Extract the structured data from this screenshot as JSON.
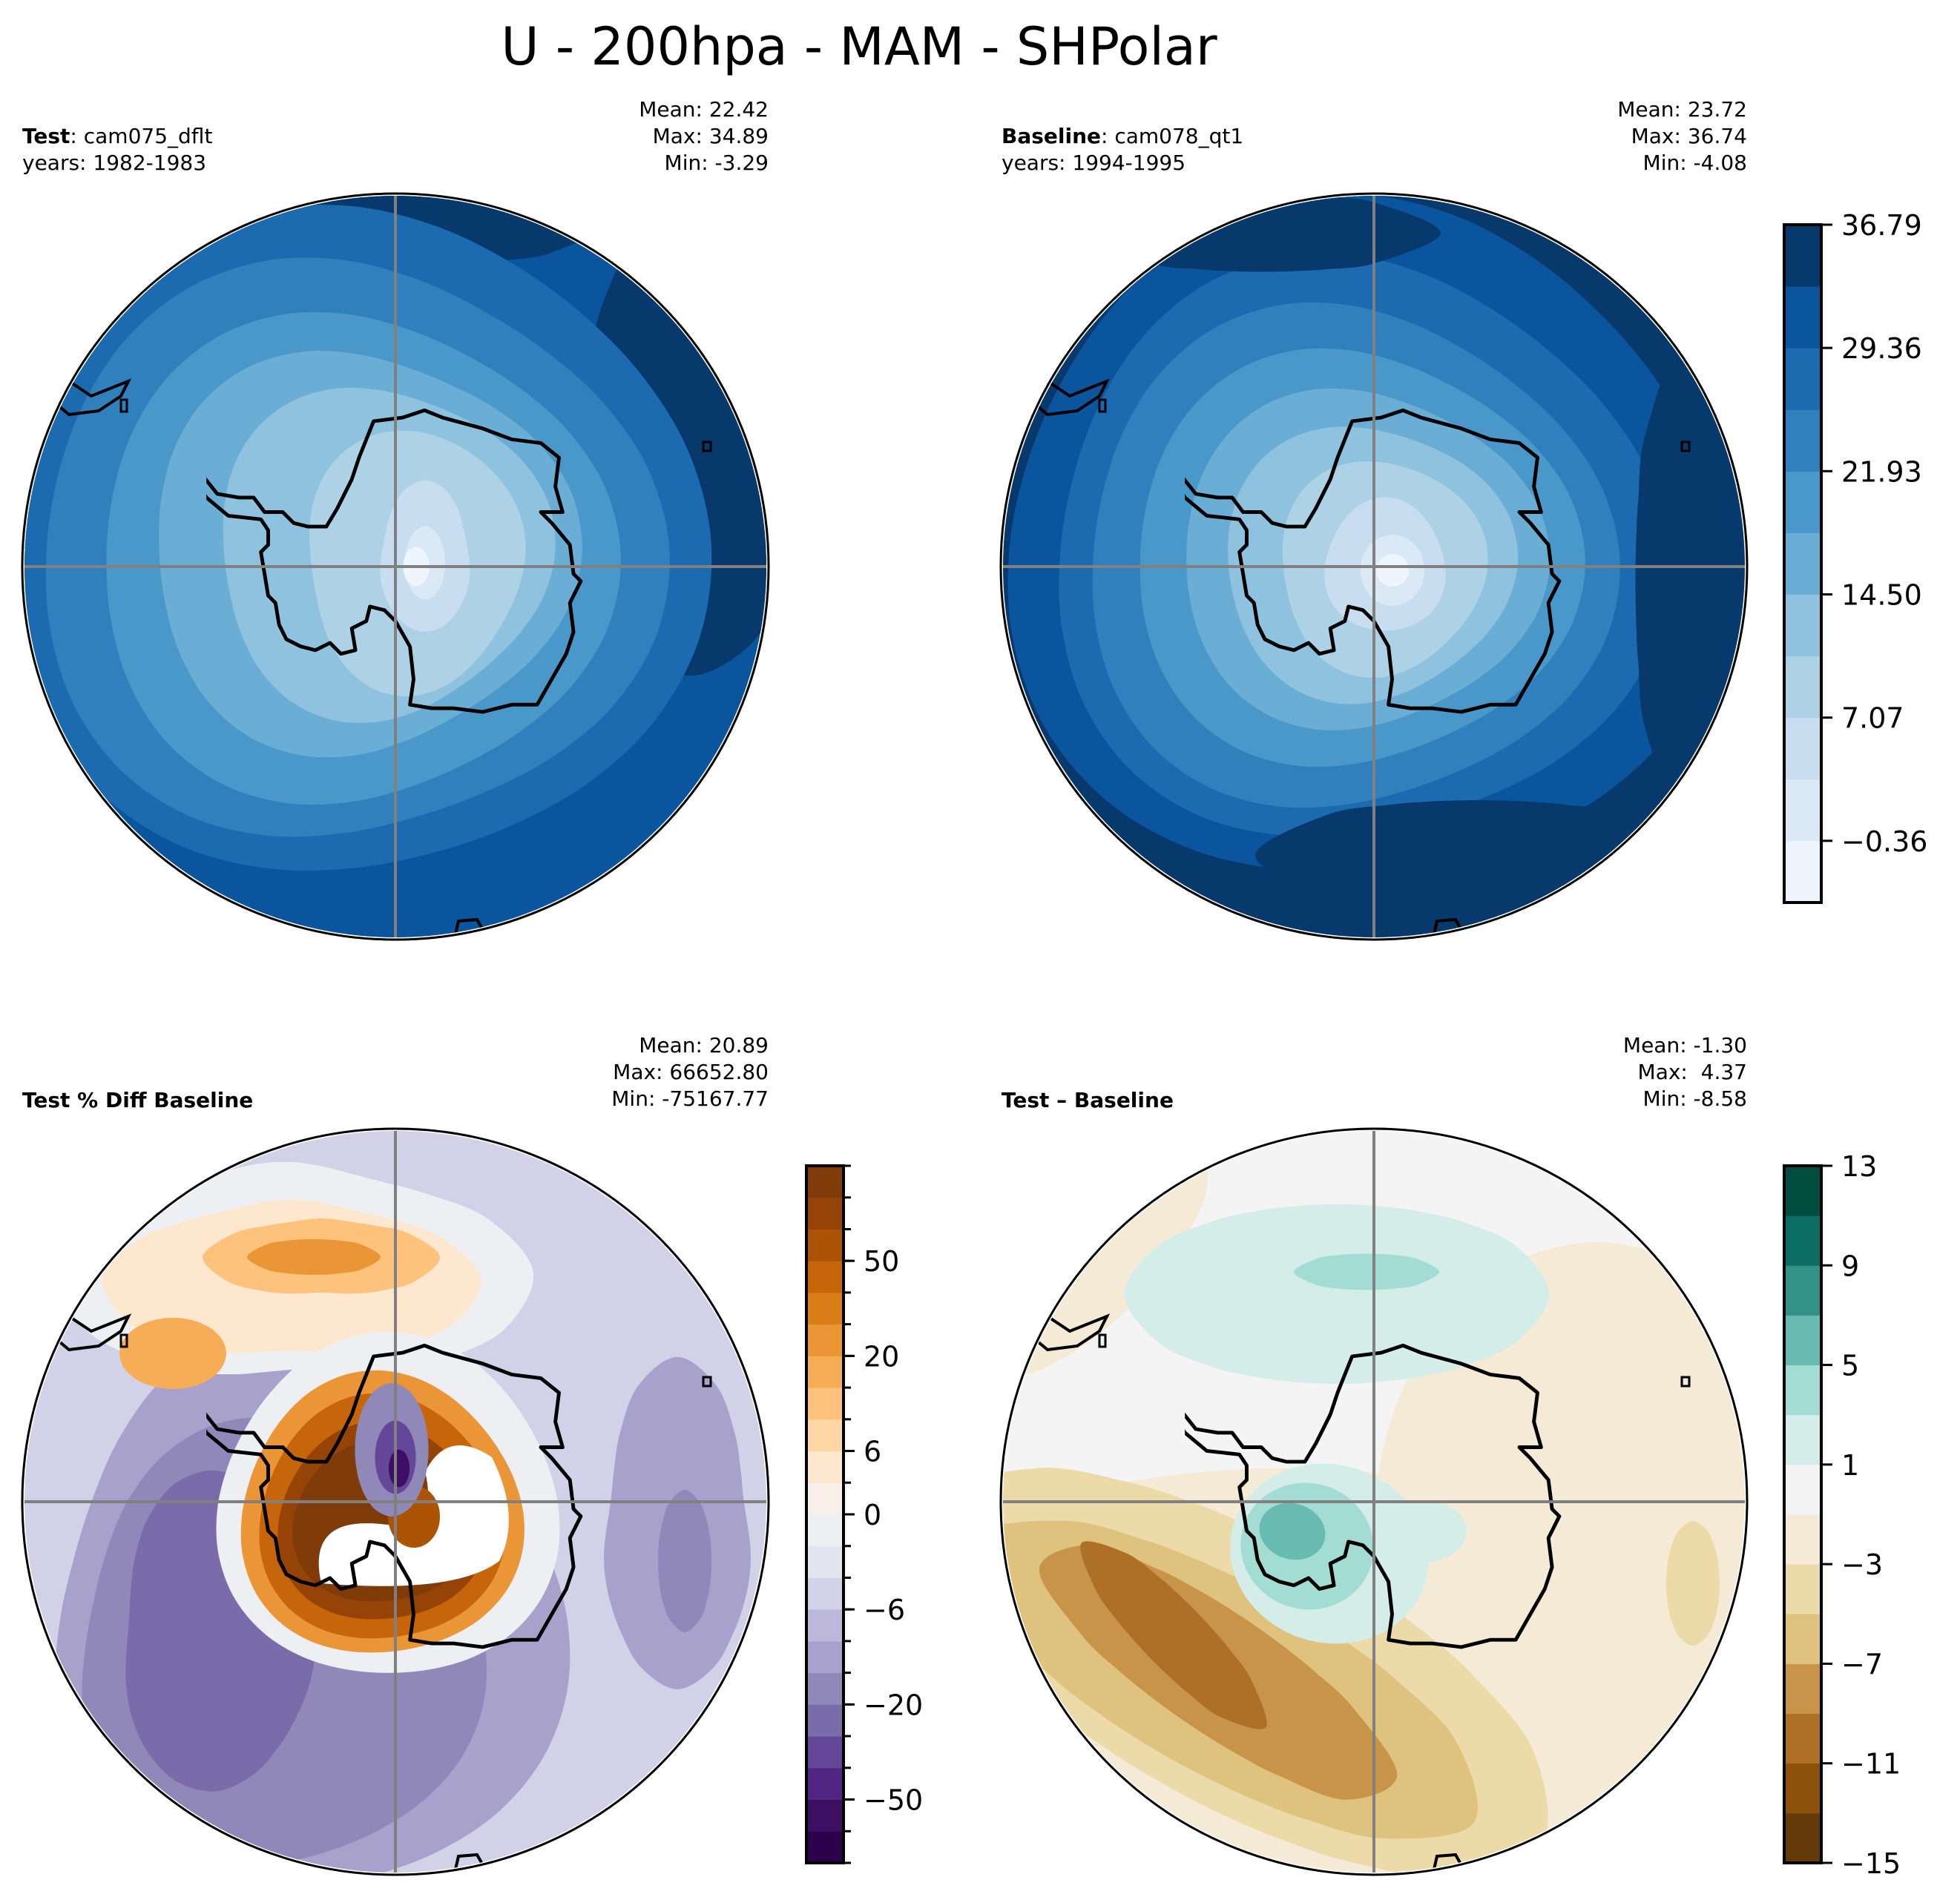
{
  "figure": {
    "title": "U - 200hpa - MAM - SHPolar"
  },
  "chart_data": [
    {
      "type": "heatmap",
      "panel": "test",
      "title_bold": "Test",
      "title_rest": ": cam075_dflt",
      "subtitle": "years: 1982-1983",
      "stats": {
        "mean": "Mean: 22.42",
        "max": "Max: 34.89",
        "min": "Min: -3.29"
      },
      "projection": "South Polar Stereographic",
      "colormap": "Blues",
      "levels": [
        -4.08,
        -0.36,
        3.35,
        7.07,
        10.78,
        14.5,
        18.21,
        21.93,
        25.64,
        29.36,
        33.07,
        36.79
      ],
      "description": "Zonal wind minimum (<3) over the pole, increasing outward to a jet maximum (>33) in the outer ring, strongest on the right side (east) and top."
    },
    {
      "type": "heatmap",
      "panel": "baseline",
      "title_bold": "Baseline",
      "title_rest": ": cam078_qt1",
      "subtitle": "years: 1994-1995",
      "stats": {
        "mean": "Mean: 23.72",
        "max": "Max: 36.74",
        "min": "Min: -4.08"
      },
      "projection": "South Polar Stereographic",
      "colormap": "Blues",
      "levels": [
        -4.08,
        -0.36,
        3.35,
        7.07,
        10.78,
        14.5,
        18.21,
        21.93,
        25.64,
        29.36,
        33.07,
        36.79
      ],
      "colorbar": {
        "ticks": [
          "36.79",
          "29.36",
          "21.93",
          "14.50",
          "7.07",
          "−0.36"
        ],
        "tick_values": [
          36.79,
          29.36,
          21.93,
          14.5,
          7.07,
          -0.36
        ],
        "range": [
          -4.08,
          36.79
        ],
        "colors": [
          "#eef5fc",
          "#dbe9f6",
          "#c9ddf0",
          "#add2e6",
          "#8fc2de",
          "#6aadd5",
          "#4a98c9",
          "#3080bd",
          "#1c6ab0",
          "#0b559f",
          "#08396d"
        ]
      },
      "description": "Similar pattern to test with stronger outer jet ring (>33) wrapping from top-left around the right and bottom."
    },
    {
      "type": "heatmap",
      "panel": "pct_diff",
      "title_bold": "Test % Diff Baseline",
      "title_rest": "",
      "subtitle": "",
      "stats": {
        "mean": "Mean: 20.89",
        "max": "Max: 66652.80",
        "min": "Min: -75167.77"
      },
      "projection": "South Polar Stereographic",
      "colormap": "PuOr_r",
      "colorbar": {
        "ticks": [
          "50",
          "20",
          "6",
          "0",
          "−6",
          "−20",
          "−50"
        ],
        "tick_values": [
          50,
          20,
          6,
          0,
          -6,
          -20,
          -50
        ],
        "n_bins": 22,
        "colors": [
          "#2d004b",
          "#3d0f63",
          "#512683",
          "#65479a",
          "#7a6bab",
          "#9088b9",
          "#a8a1cb",
          "#bdb8da",
          "#d3d1e7",
          "#e4e3f0",
          "#eeeff2",
          "#f8f0e8",
          "#fee7cf",
          "#fed7a5",
          "#fdc27c",
          "#f7ad55",
          "#ea9536",
          "#db7d16",
          "#c6650a",
          "#ad5404",
          "#964307",
          "#7f3b08"
        ]
      },
      "description": "Mostly weak negative (purple, -6 to -20) over the outer ocean; strong positive (orange/brown, >20) horseshoe around the pole near the Antarctic Peninsula with out-of-range white region; positive orange patches at upper-left."
    },
    {
      "type": "heatmap",
      "panel": "diff",
      "title_bold": "Test – Baseline",
      "title_rest": "",
      "subtitle": "",
      "stats": {
        "mean": "Mean: -1.30",
        "max": "Max:  4.37",
        "min": "Min: -8.58"
      },
      "projection": "South Polar Stereographic",
      "colormap": "BrBG",
      "levels": [
        -15,
        -13,
        -11,
        -9,
        -7,
        -5,
        -3,
        -1,
        1,
        3,
        5,
        7,
        9,
        11,
        13
      ],
      "colorbar": {
        "ticks": [
          "13",
          "9",
          "5",
          "1",
          "−3",
          "−7",
          "−11",
          "−15"
        ],
        "tick_values": [
          13,
          9,
          5,
          1,
          -3,
          -7,
          -11,
          -15
        ],
        "range": [
          -15,
          13
        ],
        "colors": [
          "#633a08",
          "#8c510a",
          "#ae7027",
          "#c8944a",
          "#dfc27d",
          "#ecdaa8",
          "#f5ead5",
          "#f3f4f3",
          "#d4ede9",
          "#a3dcd3",
          "#68bbb0",
          "#339288",
          "#0b6d64",
          "#024c40"
        ]
      },
      "description": "Negative values (brown, down to about -9) in a band from left to bottom; small positive (teal, up to ~5) over the Antarctic Peninsula region and a patch at top."
    }
  ]
}
